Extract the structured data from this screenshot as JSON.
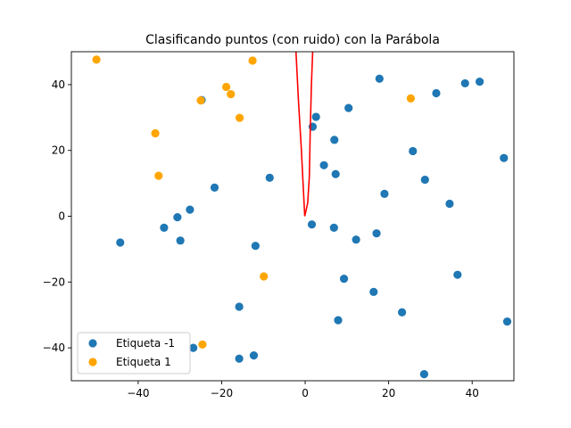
{
  "chart_data": {
    "type": "scatter",
    "title": "Clasificando puntos (con ruido) con la Parábola",
    "xlabel": "",
    "ylabel": "",
    "xlim": [
      -56,
      50
    ],
    "ylim": [
      -50,
      50
    ],
    "xticks": [
      -40,
      -20,
      0,
      20,
      40
    ],
    "yticks": [
      -40,
      -20,
      0,
      20,
      40
    ],
    "grid": false,
    "legend_position": "lower-left",
    "colors": {
      "label_neg": "#1f77b4",
      "label_pos": "#ffa500",
      "curve": "#ff0000"
    },
    "series": [
      {
        "name": "Etiqueta -1",
        "points": [
          [
            -44.3,
            -8
          ],
          [
            -33.8,
            -3.5
          ],
          [
            -30.6,
            -0.3
          ],
          [
            -29.9,
            -7.4
          ],
          [
            -27.6,
            2
          ],
          [
            -26.8,
            -40
          ],
          [
            -24.8,
            35.3
          ],
          [
            -21.7,
            8.7
          ],
          [
            -15.8,
            -27.5
          ],
          [
            -15.8,
            -43.3
          ],
          [
            -12.3,
            -42.3
          ],
          [
            -11.9,
            -9
          ],
          [
            -8.5,
            11.7
          ],
          [
            1.6,
            -2.5
          ],
          [
            1.8,
            27.2
          ],
          [
            2.6,
            30.2
          ],
          [
            4.5,
            15.5
          ],
          [
            7,
            23.2
          ],
          [
            6.9,
            -3.5
          ],
          [
            7.3,
            12.8
          ],
          [
            7.9,
            -31.6
          ],
          [
            9.3,
            -19
          ],
          [
            10.4,
            32.9
          ],
          [
            12.2,
            -7.1
          ],
          [
            16.4,
            -23
          ],
          [
            17.1,
            -5.2
          ],
          [
            17.8,
            41.8
          ],
          [
            19,
            6.8
          ],
          [
            23.2,
            -29.2
          ],
          [
            25.8,
            19.8
          ],
          [
            28.5,
            -48
          ],
          [
            28.7,
            11.1
          ],
          [
            31.4,
            37.4
          ],
          [
            34.6,
            3.8
          ],
          [
            36.5,
            -17.8
          ],
          [
            38.3,
            40.4
          ],
          [
            41.8,
            40.9
          ],
          [
            47.6,
            17.7
          ],
          [
            48.4,
            -32
          ]
        ]
      },
      {
        "name": "Etiqueta 1",
        "points": [
          [
            -50,
            47.6
          ],
          [
            -35.9,
            25.2
          ],
          [
            -35.1,
            12.3
          ],
          [
            -25,
            35.2
          ],
          [
            -24.6,
            -39
          ],
          [
            -18.9,
            39.3
          ],
          [
            -17.8,
            37.1
          ],
          [
            -15.7,
            29.9
          ],
          [
            -12.6,
            47.3
          ],
          [
            -9.9,
            -18.3
          ],
          [
            25.3,
            35.8
          ]
        ]
      }
    ],
    "curve": {
      "name": "",
      "points": [
        [
          -2.2,
          50
        ],
        [
          -1.6,
          35
        ],
        [
          -0.9,
          20
        ],
        [
          -0.5,
          10
        ],
        [
          -0.1,
          0
        ],
        [
          0.6,
          4
        ],
        [
          1,
          12
        ],
        [
          1.2,
          25
        ],
        [
          1.5,
          40
        ],
        [
          1.8,
          50
        ]
      ]
    }
  }
}
